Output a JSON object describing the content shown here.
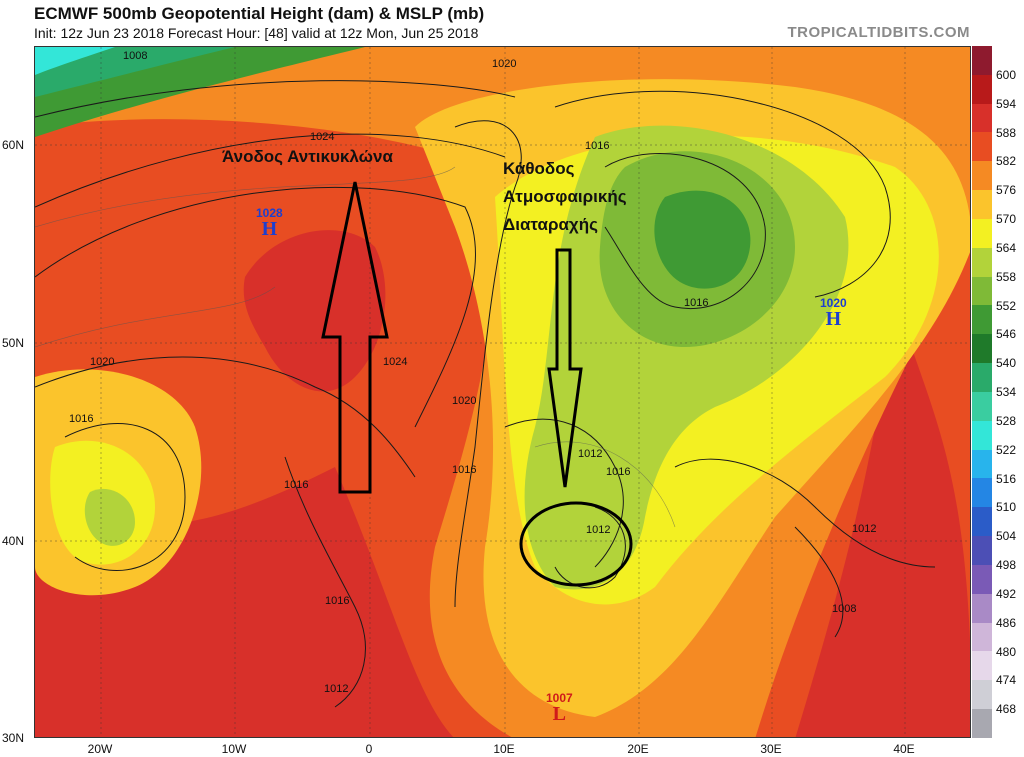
{
  "header": {
    "title": "ECMWF 500mb Geopotential Height (dam) & MSLP (mb)",
    "subtitle": "Init: 12z Jun 23 2018   Forecast Hour: [48]   valid at 12z Mon, Jun 25 2018",
    "brand": "TROPICALTIDBITS.COM"
  },
  "axes": {
    "lat_labels": [
      "60N",
      "50N",
      "40N",
      "30N"
    ],
    "lon_labels": [
      "20W",
      "10W",
      "0",
      "10E",
      "20E",
      "30E",
      "40E"
    ]
  },
  "colorbar": {
    "labels": [
      "600",
      "594",
      "588",
      "582",
      "576",
      "570",
      "564",
      "558",
      "552",
      "546",
      "540",
      "534",
      "528",
      "522",
      "516",
      "510",
      "504",
      "498",
      "492",
      "486",
      "480",
      "474",
      "468"
    ],
    "colors": [
      "#8e1a2e",
      "#b81a1a",
      "#d8302a",
      "#e84d22",
      "#f58a23",
      "#fbc42c",
      "#f3f022",
      "#b2d33a",
      "#7fba37",
      "#3f9a34",
      "#1f7a2a",
      "#2aaa6a",
      "#3acda0",
      "#33e6d8",
      "#28b4ec",
      "#2486e4",
      "#2b5cc8",
      "#4c4fb5",
      "#7a5ab6",
      "#a98ac6",
      "#cfb6d9",
      "#e6d8ea",
      "#cfcfd6",
      "#a8a8b0"
    ],
    "colormap_description_colors": {
      "high": "#b81a1a",
      "mid": "#fbc42c",
      "low": "#1f7a2a"
    }
  },
  "pressure_labels": [
    "1008",
    "1020",
    "1024",
    "1016",
    "1020",
    "1024",
    "1020",
    "1016",
    "1016",
    "1016",
    "1016",
    "1012",
    "1016",
    "1012",
    "1012",
    "1008",
    "1016",
    "1012"
  ],
  "pressure_centers": [
    {
      "value": "1028",
      "letter": "H",
      "color": "#1d3fd0"
    },
    {
      "value": "1020",
      "letter": "H",
      "color": "#1d3fd0"
    },
    {
      "value": "1007",
      "letter": "L",
      "color": "#d01a1a"
    }
  ],
  "annotations": {
    "ridge_label": "Άνοδος Αντικυκλώνα",
    "trough_label_line1": "Κάθοδος",
    "trough_label_line2": "Ατμοσφαιρικής",
    "trough_label_line3": "Διαταραχής"
  }
}
